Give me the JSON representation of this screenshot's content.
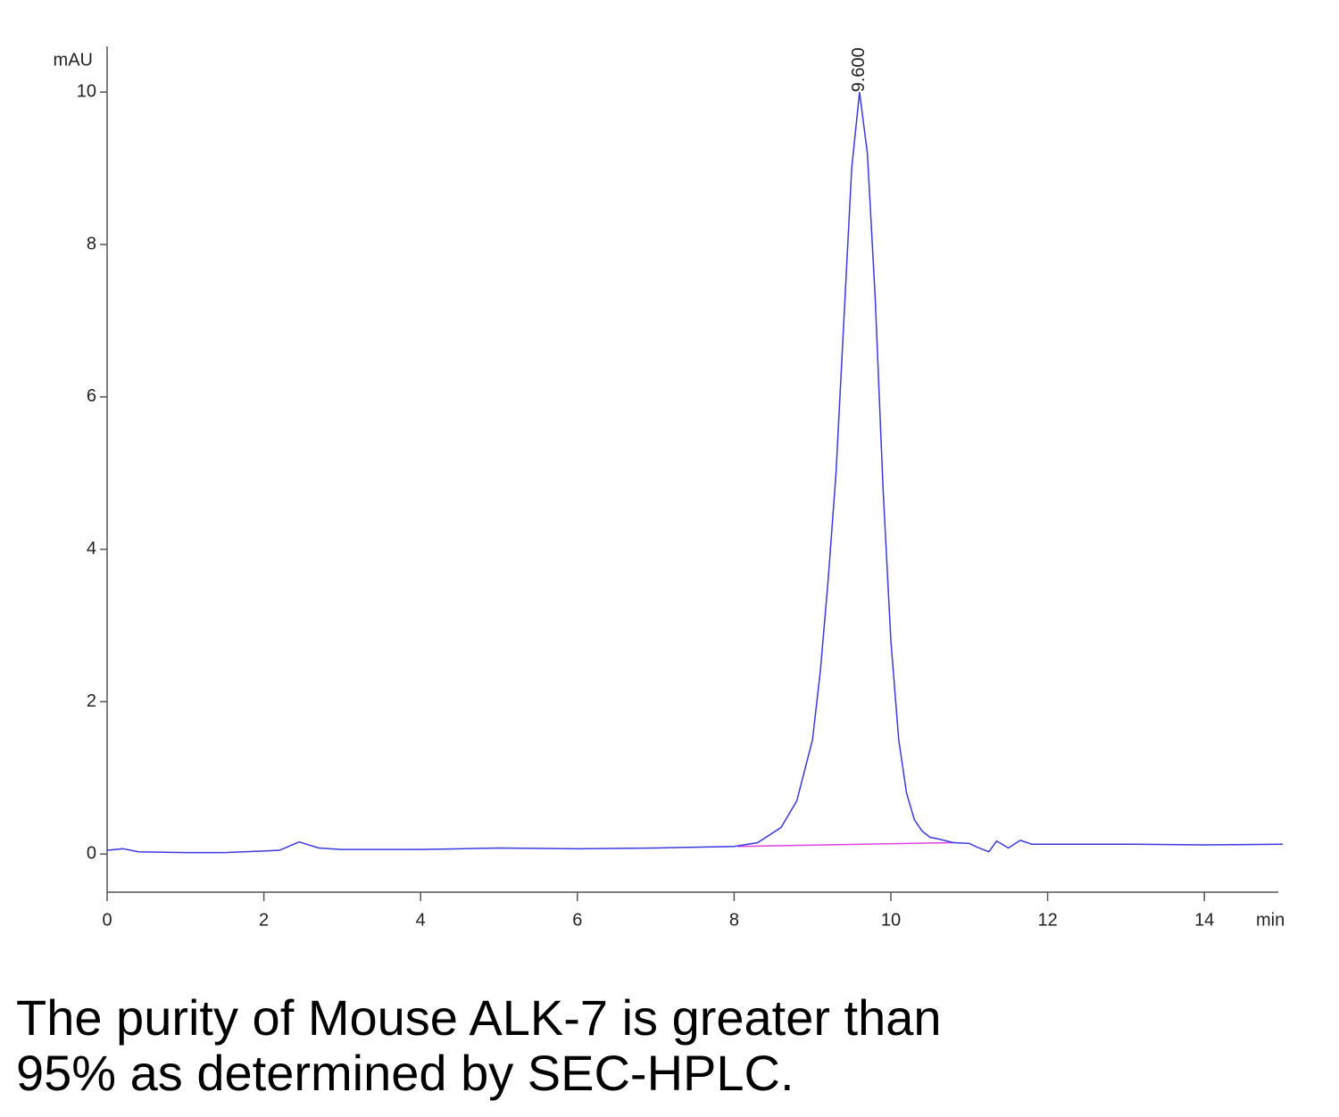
{
  "chart_data": {
    "type": "line",
    "y_label": "mAU",
    "x_label": "min",
    "xlim": [
      0,
      15
    ],
    "ylim": [
      -0.5,
      10.6
    ],
    "xticks": [
      0,
      2,
      4,
      6,
      8,
      10,
      12,
      14
    ],
    "yticks": [
      0,
      2,
      4,
      6,
      8,
      10
    ],
    "series": [
      {
        "color": "#3a3adf",
        "x": [
          0,
          0.2,
          0.4,
          1,
          1.5,
          2,
          2.2,
          2.45,
          2.7,
          3,
          4,
          5,
          6,
          7,
          7.5,
          8,
          8.3,
          8.6,
          8.8,
          9.0,
          9.1,
          9.2,
          9.3,
          9.4,
          9.5,
          9.6,
          9.7,
          9.8,
          9.9,
          10.0,
          10.1,
          10.2,
          10.3,
          10.4,
          10.5,
          10.6,
          10.8,
          11.0,
          11.1,
          11.25,
          11.35,
          11.5,
          11.65,
          11.8,
          12,
          13,
          14,
          15
        ],
        "values": [
          0.05,
          0.07,
          0.03,
          0.02,
          0.02,
          0.04,
          0.05,
          0.16,
          0.08,
          0.06,
          0.06,
          0.08,
          0.07,
          0.08,
          0.09,
          0.1,
          0.15,
          0.35,
          0.7,
          1.5,
          2.4,
          3.6,
          5.0,
          7.0,
          9.0,
          10.0,
          9.2,
          7.3,
          4.8,
          2.8,
          1.5,
          0.8,
          0.45,
          0.3,
          0.22,
          0.2,
          0.15,
          0.14,
          0.09,
          0.03,
          0.17,
          0.08,
          0.18,
          0.13,
          0.13,
          0.13,
          0.12,
          0.13
        ]
      }
    ],
    "baseline": {
      "color": "#e040e0",
      "x": [
        8.05,
        10.8
      ],
      "values": [
        0.1,
        0.15
      ]
    },
    "annotations": [
      {
        "text": "9.600",
        "x": 9.6,
        "y": 10.0
      }
    ]
  },
  "caption": [
    "The purity of Mouse ALK-7 is greater than",
    "95% as determined by SEC-HPLC."
  ]
}
